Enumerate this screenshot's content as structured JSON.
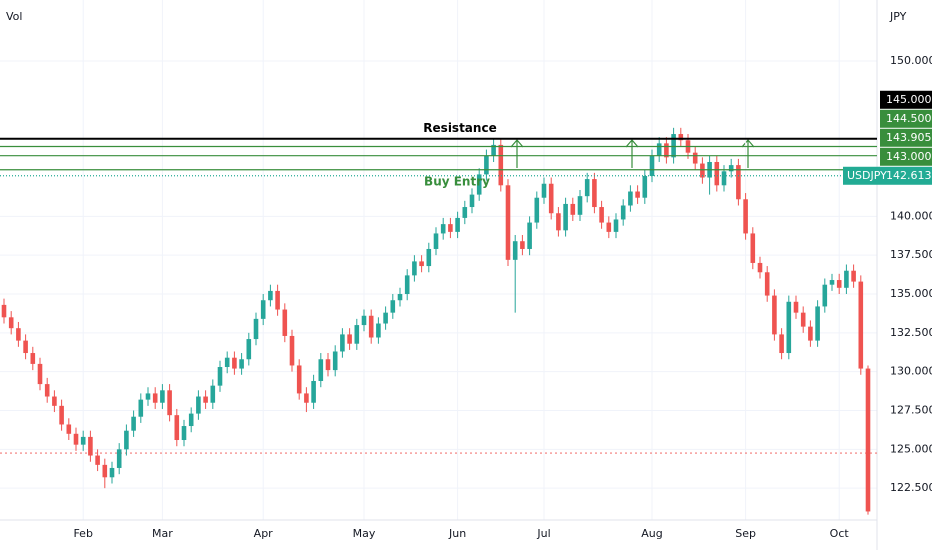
{
  "chart_data": {
    "type": "candlestick",
    "volume_label": "Vol",
    "currency": "JPY",
    "categories": [
      null,
      null,
      null,
      null,
      null,
      null,
      null,
      null,
      null,
      null,
      null,
      "Feb",
      null,
      null,
      null,
      null,
      null,
      null,
      null,
      null,
      null,
      null,
      "Mar",
      null,
      null,
      null,
      null,
      null,
      null,
      null,
      null,
      null,
      null,
      null,
      null,
      null,
      "Apr",
      null,
      null,
      null,
      null,
      null,
      null,
      null,
      null,
      null,
      null,
      null,
      null,
      null,
      "May",
      null,
      null,
      null,
      null,
      null,
      null,
      null,
      null,
      null,
      null,
      null,
      null,
      "Jun",
      null,
      null,
      null,
      null,
      null,
      null,
      null,
      null,
      null,
      null,
      null,
      "Jul",
      null,
      null,
      null,
      null,
      null,
      null,
      null,
      null,
      null,
      null,
      null,
      null,
      null,
      null,
      "Aug",
      null,
      null,
      null,
      null,
      null,
      null,
      null,
      null,
      null,
      null,
      null,
      null,
      "Sep",
      null,
      null,
      null,
      null,
      null,
      null,
      null,
      null,
      null,
      null,
      null,
      null,
      "Oct",
      null,
      null,
      null,
      null
    ],
    "open": [
      134.3,
      133.5,
      132.8,
      132.0,
      131.2,
      130.5,
      129.2,
      128.4,
      127.8,
      126.6,
      126.0,
      125.3,
      125.8,
      124.6,
      124.0,
      123.2,
      123.8,
      125.0,
      126.2,
      127.1,
      128.2,
      128.6,
      128.0,
      128.8,
      127.2,
      125.6,
      126.5,
      127.3,
      128.4,
      128.0,
      129.1,
      130.3,
      130.9,
      130.2,
      130.8,
      132.1,
      133.4,
      134.6,
      135.2,
      134.0,
      132.3,
      130.4,
      128.6,
      128.0,
      129.4,
      130.8,
      130.1,
      131.3,
      132.4,
      131.8,
      133.0,
      133.6,
      132.2,
      133.1,
      133.8,
      134.6,
      135.0,
      136.2,
      137.1,
      136.8,
      137.9,
      138.9,
      139.5,
      139.0,
      139.9,
      140.6,
      141.4,
      142.7,
      143.9,
      144.6,
      142.0,
      137.2,
      138.4,
      137.9,
      139.6,
      141.2,
      142.1,
      140.2,
      139.1,
      140.8,
      140.1,
      141.3,
      142.4,
      140.6,
      139.6,
      139.0,
      139.8,
      140.7,
      141.6,
      141.2,
      142.6,
      143.9,
      144.7,
      143.8,
      145.3,
      144.9,
      144.1,
      143.4,
      142.5,
      143.5,
      142.0,
      142.9,
      143.3,
      141.1,
      138.9,
      137.0,
      136.4,
      134.9,
      132.4,
      131.2,
      134.5,
      133.8,
      132.9,
      132.0,
      134.2,
      135.6,
      135.9,
      135.4,
      136.5,
      135.8,
      130.2
    ],
    "high": [
      134.7,
      133.9,
      133.2,
      132.4,
      131.6,
      130.9,
      129.6,
      128.8,
      128.2,
      127.0,
      126.4,
      126.2,
      126.2,
      125.0,
      124.4,
      124.2,
      125.4,
      126.6,
      127.5,
      128.6,
      129.0,
      129.0,
      129.2,
      129.2,
      127.6,
      126.9,
      127.7,
      128.8,
      128.8,
      129.5,
      130.7,
      131.3,
      131.3,
      131.2,
      132.5,
      133.8,
      135.0,
      135.6,
      135.6,
      134.4,
      132.7,
      130.8,
      129.0,
      129.8,
      131.2,
      131.2,
      131.7,
      132.8,
      132.8,
      133.4,
      134.0,
      134.0,
      133.5,
      134.2,
      135.0,
      135.4,
      136.6,
      137.5,
      137.5,
      138.3,
      139.3,
      139.9,
      139.9,
      140.3,
      141.0,
      141.8,
      143.1,
      144.3,
      145.0,
      145.0,
      142.4,
      138.8,
      138.8,
      140.0,
      141.6,
      142.5,
      142.5,
      140.6,
      141.2,
      141.2,
      141.7,
      142.8,
      142.8,
      141.0,
      140.0,
      140.2,
      141.1,
      142.0,
      142.0,
      143.0,
      144.3,
      145.1,
      145.1,
      145.7,
      145.7,
      145.3,
      144.5,
      143.8,
      143.9,
      143.9,
      143.3,
      143.7,
      143.7,
      141.5,
      139.3,
      137.4,
      136.8,
      135.3,
      132.8,
      134.9,
      134.9,
      134.2,
      133.3,
      134.6,
      136.0,
      136.3,
      136.3,
      136.9,
      136.9,
      136.2,
      130.4
    ],
    "low": [
      133.1,
      132.4,
      131.6,
      130.8,
      130.1,
      128.8,
      128.0,
      127.4,
      126.2,
      125.6,
      124.9,
      124.9,
      124.2,
      123.6,
      122.5,
      122.8,
      123.4,
      124.6,
      125.8,
      126.7,
      127.8,
      127.6,
      127.6,
      126.8,
      125.2,
      125.2,
      126.1,
      126.9,
      127.6,
      127.6,
      128.7,
      129.9,
      129.8,
      129.8,
      130.4,
      131.7,
      133.0,
      134.2,
      133.6,
      131.9,
      130.0,
      128.2,
      127.4,
      127.6,
      129.0,
      129.7,
      129.7,
      130.9,
      131.4,
      131.4,
      132.6,
      131.8,
      131.8,
      132.7,
      133.4,
      134.2,
      134.6,
      135.8,
      136.4,
      136.4,
      137.5,
      138.5,
      138.6,
      138.6,
      139.5,
      140.2,
      141.0,
      142.3,
      143.5,
      141.6,
      136.8,
      133.8,
      137.5,
      137.5,
      139.2,
      140.8,
      139.8,
      138.7,
      138.7,
      139.7,
      139.7,
      140.9,
      140.2,
      139.2,
      138.6,
      138.6,
      139.4,
      140.3,
      140.8,
      140.8,
      142.2,
      143.5,
      143.4,
      143.4,
      144.5,
      143.7,
      143.0,
      142.1,
      141.4,
      141.6,
      141.6,
      142.5,
      140.7,
      138.5,
      136.6,
      136.0,
      134.5,
      132.0,
      130.8,
      130.8,
      133.4,
      132.5,
      131.6,
      131.6,
      133.8,
      135.2,
      135.0,
      135.0,
      135.4,
      129.8,
      120.8
    ],
    "close": [
      133.5,
      132.8,
      132.0,
      131.2,
      130.5,
      129.2,
      128.4,
      127.8,
      126.6,
      126.0,
      125.3,
      125.8,
      124.6,
      124.0,
      123.2,
      123.8,
      125.0,
      126.2,
      127.1,
      128.2,
      128.6,
      128.0,
      128.8,
      127.2,
      125.6,
      126.5,
      127.3,
      128.4,
      128.0,
      129.1,
      130.3,
      130.9,
      130.2,
      130.8,
      132.1,
      133.4,
      134.6,
      135.2,
      134.0,
      132.3,
      130.4,
      128.6,
      128.0,
      129.4,
      130.8,
      130.1,
      131.3,
      132.4,
      131.8,
      133.0,
      133.6,
      132.2,
      133.1,
      133.8,
      134.6,
      135.0,
      136.2,
      137.1,
      136.8,
      137.9,
      138.9,
      139.5,
      139.0,
      139.9,
      140.6,
      141.4,
      142.7,
      143.9,
      144.6,
      142.0,
      137.2,
      138.4,
      137.9,
      139.6,
      141.2,
      142.1,
      140.2,
      139.1,
      140.8,
      140.1,
      141.3,
      142.4,
      140.6,
      139.6,
      139.0,
      139.8,
      140.7,
      141.6,
      141.2,
      142.6,
      143.9,
      144.7,
      143.8,
      145.3,
      144.9,
      144.1,
      143.4,
      142.5,
      143.5,
      142.0,
      142.9,
      143.3,
      141.1,
      138.9,
      137.0,
      136.4,
      134.9,
      132.4,
      131.2,
      134.5,
      133.8,
      132.9,
      132.0,
      134.2,
      135.6,
      135.9,
      135.4,
      136.5,
      135.8,
      130.2,
      121.0
    ],
    "up_color": "#26a69a",
    "down_color": "#ef5350",
    "ylim": [
      120.45,
      153.93
    ],
    "yticks": [
      {
        "value": 150,
        "label": "150.000"
      },
      {
        "value": 140,
        "label": "140.000"
      },
      {
        "value": 137.5,
        "label": "137.500"
      },
      {
        "value": 135,
        "label": "135.000"
      },
      {
        "value": 132.5,
        "label": "132.500"
      },
      {
        "value": 130,
        "label": "130.000"
      },
      {
        "value": 127.5,
        "label": "127.500"
      },
      {
        "value": 125,
        "label": "125.000"
      },
      {
        "value": 122.5,
        "label": "122.500"
      }
    ],
    "grid": true,
    "levels": [
      {
        "value": 145,
        "label": "145.000",
        "color": "#000000",
        "style": "solid"
      },
      {
        "value": 144.5,
        "label": "144.500",
        "color": "#388e3c",
        "style": "solid"
      },
      {
        "value": 143.905,
        "label": "143.905",
        "color": "#388e3c",
        "style": "solid"
      },
      {
        "value": 143,
        "label": "143.000",
        "color": "#388e3c",
        "style": "solid"
      },
      {
        "value": 142.613,
        "label": "142.613",
        "name": "USDJPY",
        "color": "#22ab94",
        "style": "dotted"
      }
    ],
    "reference_line": {
      "value": 124.76,
      "color": "#ef5350",
      "style": "dashed"
    },
    "annotations": [
      {
        "text": "Resistance",
        "color": "#000000"
      },
      {
        "text": "Buy Entry",
        "color": "#388e3c"
      }
    ]
  }
}
